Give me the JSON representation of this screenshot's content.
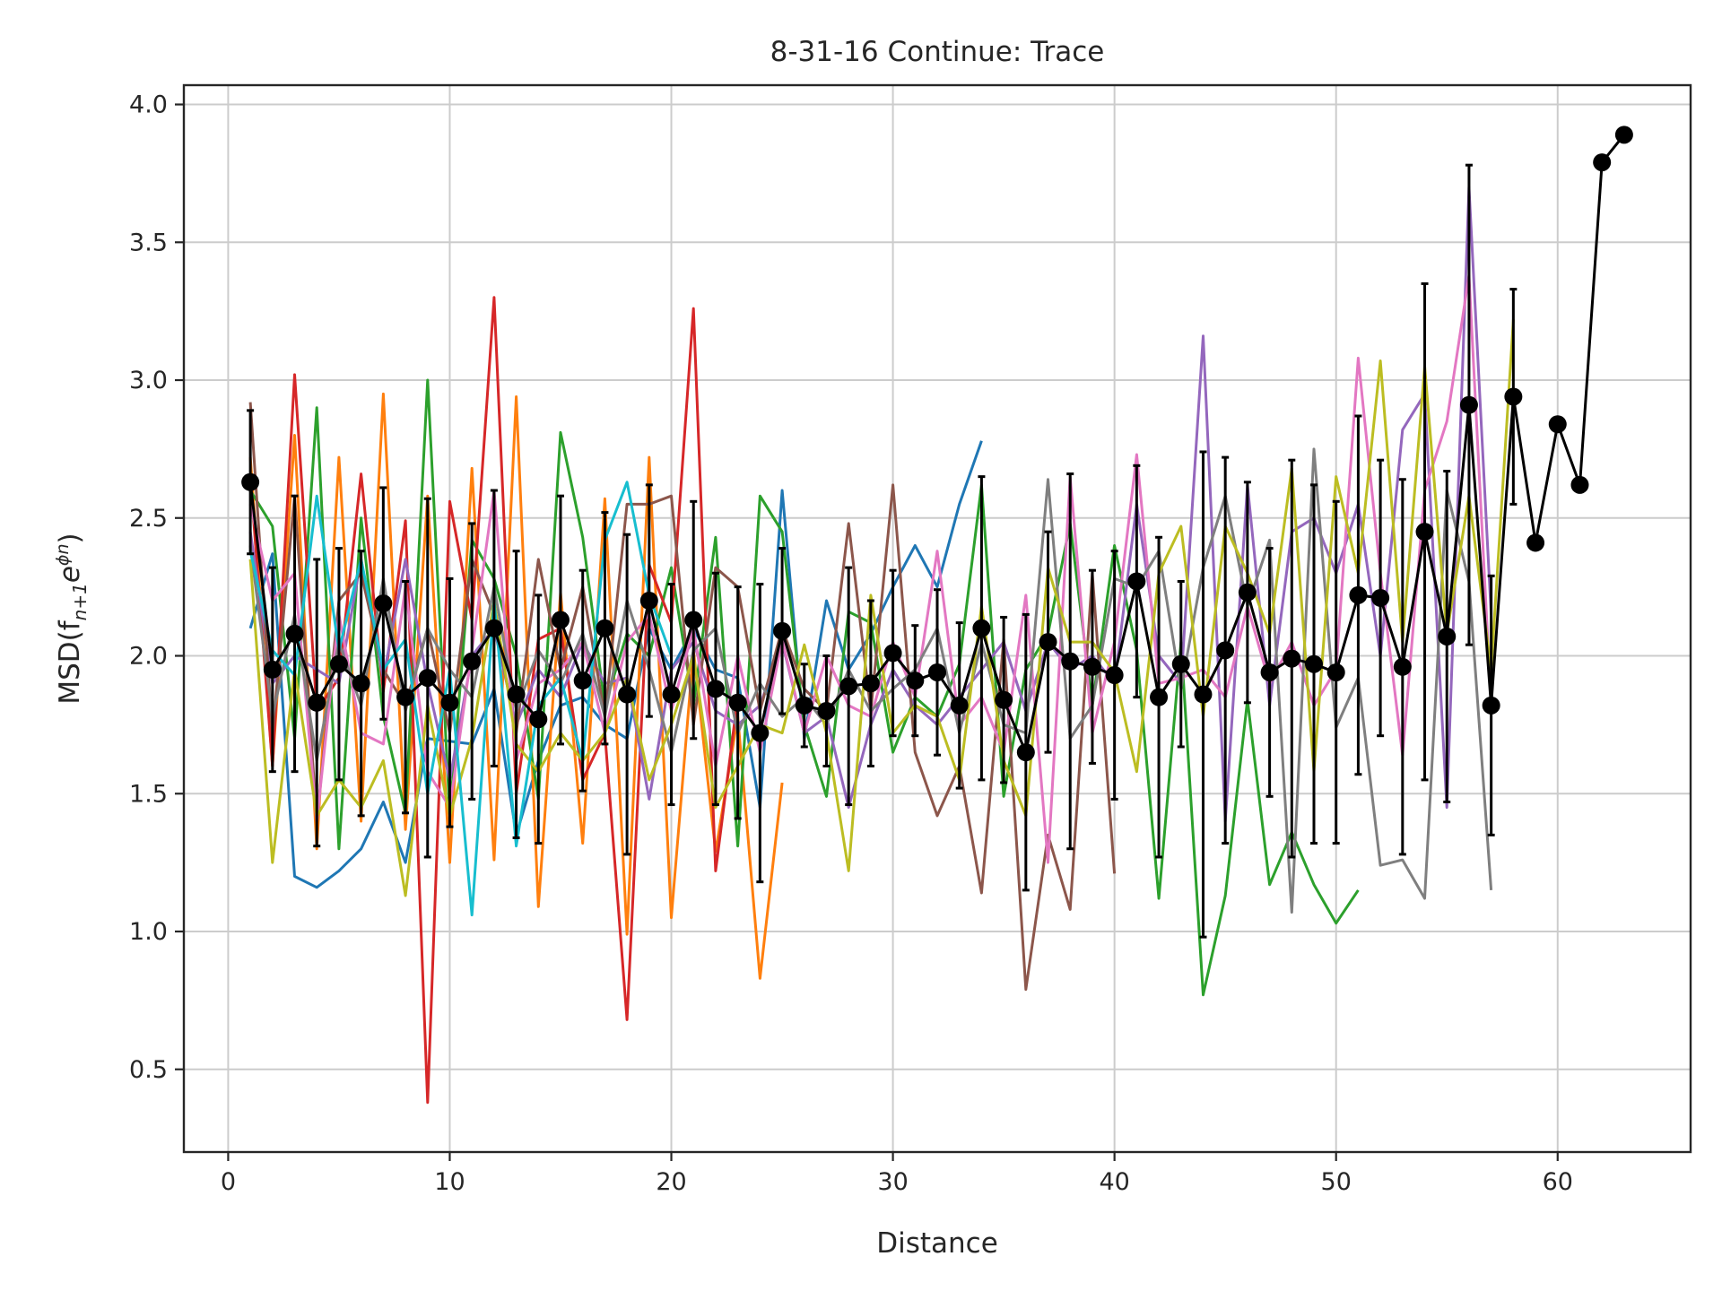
{
  "chart_data": {
    "type": "line",
    "title": "8-31-16 Continue: Trace",
    "xlabel": "Distance",
    "ylabel": "MSD(f",
    "ylabel_sub": "n+1",
    "ylabel_tail": "e",
    "ylabel_sup": "ϕn",
    "ylabel_close": ")",
    "xlim": [
      -2,
      66
    ],
    "ylim": [
      0.2,
      4.07
    ],
    "xticks": [
      0,
      10,
      20,
      30,
      40,
      50,
      60
    ],
    "yticks": [
      0.5,
      1.0,
      1.5,
      2.0,
      2.5,
      3.0,
      3.5,
      4.0
    ],
    "xtick_labels": [
      "0",
      "10",
      "20",
      "30",
      "40",
      "50",
      "60"
    ],
    "ytick_labels": [
      "0.5",
      "1.0",
      "1.5",
      "2.0",
      "2.5",
      "3.0",
      "3.5",
      "4.0"
    ],
    "grid": true,
    "series": [
      {
        "color": "#1f77b4",
        "x": [
          1,
          2,
          3,
          4,
          5,
          6,
          7,
          8,
          9,
          10,
          11,
          12,
          13,
          14,
          15,
          16,
          17,
          18,
          19,
          20,
          21,
          22,
          23,
          24,
          25,
          26,
          27,
          28,
          29,
          30,
          31,
          32,
          33,
          34
        ],
        "values": [
          2.1,
          2.37,
          1.2,
          1.16,
          1.22,
          1.3,
          1.47,
          1.25,
          1.7,
          1.69,
          1.68,
          1.88,
          1.35,
          1.62,
          1.82,
          1.85,
          1.75,
          1.7,
          2.1,
          1.95,
          2.1,
          1.95,
          1.92,
          1.45,
          2.6,
          1.7,
          2.2,
          1.95,
          2.08,
          2.25,
          2.4,
          2.25,
          2.55,
          2.78
        ]
      },
      {
        "color": "#ff7f0e",
        "x": [
          1,
          2,
          3,
          4,
          5,
          6,
          7,
          8,
          9,
          10,
          11,
          12,
          13,
          14,
          15,
          16,
          17,
          18,
          19,
          20,
          21,
          22,
          23,
          24,
          25
        ],
        "values": [
          2.72,
          1.6,
          2.8,
          1.3,
          2.72,
          1.4,
          2.95,
          1.37,
          2.58,
          1.25,
          2.68,
          1.26,
          2.94,
          1.09,
          2.23,
          1.32,
          2.57,
          0.99,
          2.72,
          1.05,
          2.02,
          1.29,
          1.78,
          0.83,
          1.54
        ]
      },
      {
        "color": "#2ca02c",
        "x": [
          1,
          2,
          3,
          4,
          5,
          6,
          7,
          8,
          9,
          10,
          11,
          12,
          13,
          14,
          15,
          16,
          17,
          18,
          19,
          20,
          21,
          22,
          23,
          24,
          25,
          26,
          27,
          28,
          29,
          30,
          31,
          32,
          33,
          34,
          35,
          36,
          37,
          38,
          39,
          40,
          41,
          42,
          43,
          44,
          45,
          46,
          47,
          48,
          49,
          50,
          51
        ],
        "values": [
          2.6,
          2.47,
          1.7,
          2.9,
          1.3,
          2.5,
          1.78,
          1.43,
          3.0,
          1.42,
          2.42,
          2.28,
          2.0,
          1.48,
          2.81,
          2.43,
          1.82,
          2.08,
          2.0,
          2.32,
          1.82,
          2.43,
          1.31,
          2.58,
          2.45,
          1.75,
          1.49,
          2.16,
          2.12,
          1.65,
          1.85,
          1.78,
          1.97,
          2.62,
          1.49,
          1.95,
          2.08,
          2.48,
          1.82,
          2.4,
          2.02,
          1.12,
          2.05,
          0.77,
          1.13,
          1.84,
          1.17,
          1.36,
          1.17,
          1.03,
          1.15
        ]
      },
      {
        "color": "#d62728",
        "x": [
          1,
          2,
          3,
          4,
          5,
          6,
          7,
          8,
          9,
          10,
          11,
          12,
          13,
          14,
          15,
          16,
          17,
          18,
          19,
          20,
          21,
          22,
          23
        ],
        "values": [
          2.65,
          1.6,
          3.02,
          1.8,
          1.92,
          2.66,
          1.87,
          2.49,
          0.38,
          2.56,
          2.13,
          3.3,
          1.5,
          2.06,
          2.1,
          1.55,
          1.72,
          0.68,
          2.33,
          2.12,
          3.26,
          1.22,
          1.85
        ]
      },
      {
        "color": "#9467bd",
        "x": [
          1,
          2,
          3,
          4,
          5,
          6,
          7,
          8,
          9,
          10,
          11,
          12,
          13,
          14,
          15,
          16,
          17,
          18,
          19,
          20,
          21,
          22,
          23,
          24,
          25,
          26,
          27,
          28,
          29,
          30,
          31,
          32,
          33,
          34,
          35,
          36,
          37,
          38,
          39,
          40,
          41,
          42,
          43,
          44,
          45,
          46,
          47,
          48,
          49,
          50,
          51,
          52,
          53,
          54,
          55,
          56,
          57
        ],
        "values": [
          2.45,
          1.9,
          2.0,
          1.95,
          1.9,
          2.35,
          1.92,
          2.35,
          1.9,
          1.55,
          2.0,
          2.1,
          1.75,
          1.95,
          1.85,
          2.05,
          1.9,
          1.92,
          1.48,
          1.95,
          2.05,
          1.8,
          1.75,
          1.82,
          2.05,
          1.72,
          1.78,
          1.45,
          1.75,
          1.95,
          1.82,
          1.75,
          1.85,
          1.95,
          2.05,
          1.8,
          2.05,
          1.95,
          2.0,
          1.9,
          2.55,
          2.0,
          1.9,
          3.16,
          1.4,
          2.62,
          1.82,
          2.45,
          2.5,
          2.3,
          2.55,
          2.0,
          2.82,
          2.95,
          1.45,
          3.7,
          2.15
        ]
      },
      {
        "color": "#8c564b",
        "x": [
          1,
          2,
          3,
          4,
          5,
          6,
          7,
          8,
          9,
          10,
          11,
          12,
          13,
          14,
          15,
          16,
          17,
          18,
          19,
          20,
          21,
          22,
          23,
          24,
          25,
          26,
          27,
          28,
          29,
          30,
          31,
          32,
          33,
          34,
          35,
          36,
          37,
          38,
          39,
          40
        ],
        "values": [
          2.92,
          1.72,
          2.58,
          1.4,
          2.2,
          2.3,
          1.95,
          1.82,
          2.1,
          1.72,
          2.35,
          2.15,
          1.72,
          2.35,
          1.95,
          2.25,
          1.78,
          2.55,
          2.55,
          2.58,
          1.75,
          2.32,
          2.25,
          1.8,
          2.1,
          1.88,
          1.8,
          2.48,
          1.8,
          2.62,
          1.65,
          1.42,
          1.6,
          1.14,
          2.06,
          0.79,
          1.35,
          1.08,
          2.3,
          1.21
        ]
      },
      {
        "color": "#e377c2",
        "x": [
          1,
          2,
          3,
          4,
          5,
          6,
          7,
          8,
          9,
          10,
          11,
          12,
          13,
          14,
          15,
          16,
          17,
          18,
          19,
          20,
          21,
          22,
          23,
          24,
          25,
          26,
          27,
          28,
          29,
          30,
          31,
          32,
          33,
          34,
          35,
          36,
          37,
          38,
          39,
          40,
          41,
          42,
          43,
          44,
          45,
          46,
          47,
          48,
          49,
          50,
          51,
          52,
          53,
          54,
          55,
          56,
          57
        ],
        "values": [
          2.55,
          2.2,
          2.3,
          1.4,
          2.15,
          1.72,
          1.68,
          2.25,
          1.58,
          1.45,
          2.02,
          2.6,
          1.62,
          1.9,
          1.95,
          2.05,
          1.72,
          2.05,
          2.15,
          1.8,
          2.1,
          1.6,
          2.0,
          1.65,
          2.06,
          1.72,
          2.0,
          1.82,
          1.78,
          2.05,
          1.85,
          2.38,
          1.75,
          1.85,
          1.65,
          2.22,
          1.25,
          2.65,
          1.72,
          2.05,
          2.73,
          1.9,
          1.92,
          1.95,
          1.85,
          2.18,
          1.9,
          2.05,
          1.82,
          1.95,
          3.08,
          2.3,
          1.64,
          2.6,
          2.85,
          3.38,
          1.82
        ]
      },
      {
        "color": "#7f7f7f",
        "x": [
          1,
          2,
          3,
          4,
          5,
          6,
          7,
          8,
          9,
          10,
          11,
          12,
          13,
          14,
          15,
          16,
          17,
          18,
          19,
          20,
          21,
          22,
          23,
          24,
          25,
          26,
          27,
          28,
          29,
          30,
          31,
          32,
          33,
          34,
          35,
          36,
          37,
          38,
          39,
          40,
          41,
          42,
          43,
          44,
          45,
          46,
          47,
          48,
          49,
          50,
          51,
          52,
          53,
          54,
          55,
          56,
          57
        ],
        "values": [
          2.4,
          1.78,
          2.15,
          1.62,
          2.05,
          1.82,
          2.28,
          1.8,
          2.1,
          1.95,
          1.85,
          2.25,
          1.8,
          2.02,
          1.9,
          2.08,
          1.78,
          2.2,
          1.95,
          1.65,
          2.02,
          2.1,
          1.72,
          1.9,
          1.78,
          1.85,
          1.75,
          1.95,
          1.8,
          1.88,
          1.95,
          2.1,
          1.72,
          2.05,
          1.75,
          1.72,
          2.64,
          1.7,
          1.82,
          2.28,
          2.25,
          2.38,
          1.88,
          2.32,
          2.58,
          2.18,
          2.42,
          1.07,
          2.75,
          1.74,
          1.92,
          1.24,
          1.26,
          1.12,
          2.6,
          2.27,
          1.15
        ]
      },
      {
        "color": "#bcbd22",
        "x": [
          1,
          2,
          3,
          4,
          5,
          6,
          7,
          8,
          9,
          10,
          11,
          12,
          13,
          14,
          15,
          16,
          17,
          18,
          19,
          20,
          21,
          22,
          23,
          24,
          25,
          26,
          27,
          28,
          29,
          30,
          31,
          32,
          33,
          34,
          35,
          36,
          37,
          38,
          39,
          40,
          41,
          42,
          43,
          44,
          45,
          46,
          47,
          48,
          49,
          50,
          51,
          52,
          53,
          54,
          55,
          56,
          57,
          58
        ],
        "values": [
          2.35,
          1.25,
          1.95,
          1.42,
          1.55,
          1.45,
          1.62,
          1.13,
          1.82,
          1.42,
          1.7,
          2.2,
          1.68,
          1.58,
          1.72,
          1.62,
          1.72,
          1.92,
          1.55,
          1.75,
          2.0,
          1.45,
          1.6,
          1.75,
          1.72,
          2.04,
          1.72,
          1.22,
          2.22,
          1.72,
          1.82,
          1.78,
          1.55,
          2.18,
          1.62,
          1.42,
          2.32,
          2.05,
          2.05,
          1.94,
          1.58,
          2.3,
          2.47,
          1.78,
          2.47,
          2.3,
          2.08,
          2.68,
          1.58,
          2.65,
          2.3,
          3.07,
          2.05,
          3.05,
          2.08,
          2.58,
          1.95,
          3.22
        ]
      },
      {
        "color": "#17becf",
        "x": [
          1,
          2,
          3,
          4,
          5,
          6,
          7,
          8,
          9,
          10,
          11,
          12,
          13,
          14,
          15,
          16,
          17,
          18,
          19,
          20
        ],
        "values": [
          2.38,
          2.02,
          1.93,
          2.58,
          2.02,
          2.35,
          1.95,
          2.06,
          1.5,
          1.95,
          1.06,
          2.2,
          1.31,
          1.82,
          1.92,
          1.62,
          2.42,
          2.63,
          2.22,
          2.0
        ]
      },
      {
        "color": "#000000",
        "mean": true,
        "x": [
          1,
          2,
          3,
          4,
          5,
          6,
          7,
          8,
          9,
          10,
          11,
          12,
          13,
          14,
          15,
          16,
          17,
          18,
          19,
          20,
          21,
          22,
          23,
          24,
          25,
          26,
          27,
          28,
          29,
          30,
          31,
          32,
          33,
          34,
          35,
          36,
          37,
          38,
          39,
          40,
          41,
          42,
          43,
          44,
          45,
          46,
          47,
          48,
          49,
          50,
          51,
          52,
          53,
          54,
          55,
          56,
          57,
          58,
          59,
          60,
          61,
          62,
          63
        ],
        "values": [
          2.63,
          1.95,
          2.08,
          1.83,
          1.97,
          1.9,
          2.19,
          1.85,
          1.92,
          1.83,
          1.98,
          2.1,
          1.86,
          1.77,
          2.13,
          1.91,
          2.1,
          1.86,
          2.2,
          1.86,
          2.13,
          1.88,
          1.83,
          1.72,
          2.09,
          1.82,
          1.8,
          1.89,
          1.9,
          2.01,
          1.91,
          1.94,
          1.82,
          2.1,
          1.84,
          1.65,
          2.05,
          1.98,
          1.96,
          1.93,
          2.27,
          1.85,
          1.97,
          1.86,
          2.02,
          2.23,
          1.94,
          1.99,
          1.97,
          1.94,
          2.22,
          2.21,
          1.96,
          2.45,
          2.07,
          2.91,
          1.82,
          2.94,
          2.41,
          2.84,
          2.62,
          3.79,
          3.89
        ],
        "errors": [
          0.26,
          0.37,
          0.5,
          0.52,
          0.42,
          0.48,
          0.42,
          0.42,
          0.65,
          0.45,
          0.5,
          0.5,
          0.52,
          0.45,
          0.45,
          0.4,
          0.42,
          0.58,
          0.42,
          0.4,
          0.43,
          0.42,
          0.42,
          0.54,
          0.3,
          0.15,
          0.2,
          0.43,
          0.3,
          0.3,
          0.2,
          0.3,
          0.3,
          0.55,
          0.3,
          0.5,
          0.4,
          0.68,
          0.35,
          0.45,
          0.42,
          0.58,
          0.3,
          0.88,
          0.7,
          0.4,
          0.45,
          0.72,
          0.65,
          0.62,
          0.65,
          0.5,
          0.68,
          0.9,
          0.6,
          0.87,
          0.47,
          0.39,
          0,
          0,
          0,
          0,
          0
        ]
      }
    ]
  }
}
